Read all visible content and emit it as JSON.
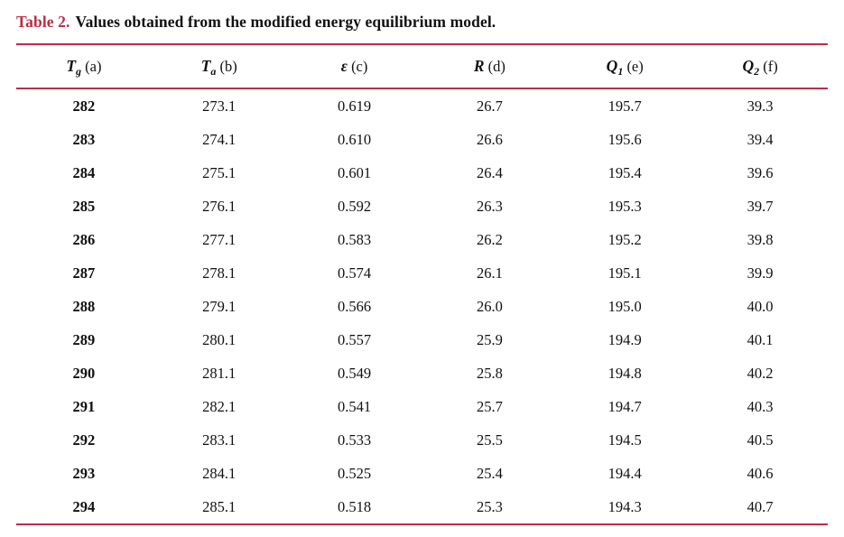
{
  "accent_color": "#bd2d44",
  "caption": {
    "label": "Table 2.",
    "text": "Values obtained from the modified energy equilibrium model."
  },
  "table": {
    "rule_color": "#bd2d44",
    "columns": [
      {
        "key": "tg",
        "symbol": "T",
        "subscript": "g",
        "suffix": "(a)"
      },
      {
        "key": "ta",
        "symbol": "T",
        "subscript": "a",
        "suffix": "(b)"
      },
      {
        "key": "epsilon",
        "symbol": "ε",
        "subscript": "",
        "suffix": "(c)"
      },
      {
        "key": "r",
        "symbol": "R",
        "subscript": "",
        "suffix": "(d)"
      },
      {
        "key": "q1",
        "symbol": "Q",
        "subscript": "1",
        "suffix": "(e)"
      },
      {
        "key": "q2",
        "symbol": "Q",
        "subscript": "2",
        "suffix": "(f)"
      }
    ],
    "rows": [
      [
        "282",
        "273.1",
        "0.619",
        "26.7",
        "195.7",
        "39.3"
      ],
      [
        "283",
        "274.1",
        "0.610",
        "26.6",
        "195.6",
        "39.4"
      ],
      [
        "284",
        "275.1",
        "0.601",
        "26.4",
        "195.4",
        "39.6"
      ],
      [
        "285",
        "276.1",
        "0.592",
        "26.3",
        "195.3",
        "39.7"
      ],
      [
        "286",
        "277.1",
        "0.583",
        "26.2",
        "195.2",
        "39.8"
      ],
      [
        "287",
        "278.1",
        "0.574",
        "26.1",
        "195.1",
        "39.9"
      ],
      [
        "288",
        "279.1",
        "0.566",
        "26.0",
        "195.0",
        "40.0"
      ],
      [
        "289",
        "280.1",
        "0.557",
        "25.9",
        "194.9",
        "40.1"
      ],
      [
        "290",
        "281.1",
        "0.549",
        "25.8",
        "194.8",
        "40.2"
      ],
      [
        "291",
        "282.1",
        "0.541",
        "25.7",
        "194.7",
        "40.3"
      ],
      [
        "292",
        "283.1",
        "0.533",
        "25.5",
        "194.5",
        "40.5"
      ],
      [
        "293",
        "284.1",
        "0.525",
        "25.4",
        "194.4",
        "40.6"
      ],
      [
        "294",
        "285.1",
        "0.518",
        "25.3",
        "194.3",
        "40.7"
      ]
    ]
  }
}
